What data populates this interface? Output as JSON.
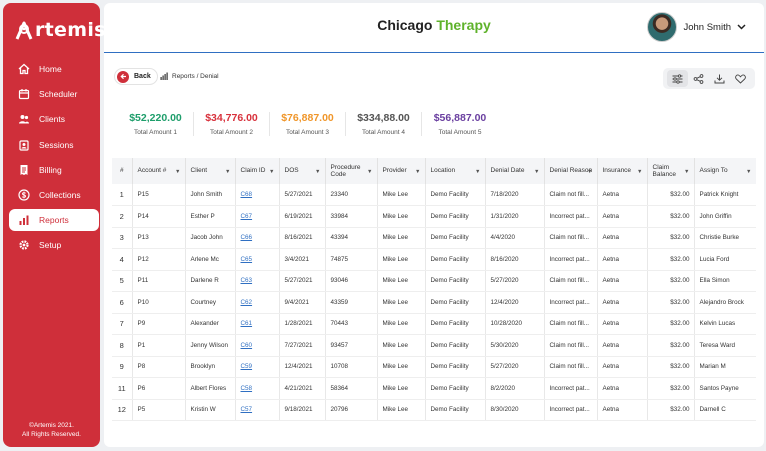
{
  "brand": {
    "logo_text": "rtemis",
    "copyright_line1": "©Artemis 2021.",
    "copyright_line2": "All Rights Reserved."
  },
  "nav": [
    {
      "label": "Home",
      "icon": "home-icon"
    },
    {
      "label": "Scheduler",
      "icon": "calendar-icon"
    },
    {
      "label": "Clients",
      "icon": "users-icon"
    },
    {
      "label": "Sessions",
      "icon": "sessions-icon"
    },
    {
      "label": "Billing",
      "icon": "billing-icon"
    },
    {
      "label": "Collections",
      "icon": "dollar-icon"
    },
    {
      "label": "Reports",
      "icon": "chart-icon",
      "active": true
    },
    {
      "label": "Setup",
      "icon": "gear-icon"
    }
  ],
  "header": {
    "title_part1": "Chicago ",
    "title_part2": "Therapy",
    "user_name": "John Smith"
  },
  "toolbar": {
    "back_label": "Back",
    "breadcrumb": "Reports / Denial"
  },
  "summary": [
    {
      "value": "$52,220.00",
      "label": "Total Amount 1",
      "color": "#1e9e6b"
    },
    {
      "value": "$34,776.00",
      "label": "Total Amount 2",
      "color": "#d8313c"
    },
    {
      "value": "$76,887.00",
      "label": "Total Amount 3",
      "color": "#f0962a"
    },
    {
      "value": "$334,88.00",
      "label": "Total Amount 4",
      "color": "#555555"
    },
    {
      "value": "$56,887.00",
      "label": "Total Amount 5",
      "color": "#6a3fa0"
    }
  ],
  "table": {
    "headers": [
      "#",
      "Account #",
      "Client",
      "Claim ID",
      "DOS",
      "Procedure Code",
      "Provider",
      "Location",
      "Denial Date",
      "Denial Reason",
      "Insurance",
      "Claim Balance",
      "Assign To"
    ],
    "rows": [
      [
        "1",
        "P15",
        "John Smith",
        "C68",
        "5/27/2021",
        "23340",
        "Mike Lee",
        "Demo Facility",
        "7/18/2020",
        "Claim not fill...",
        "Aetna",
        "$32.00",
        "Patrick Knight"
      ],
      [
        "2",
        "P14",
        "Esther P",
        "C67",
        "6/19/2021",
        "33984",
        "Mike Lee",
        "Demo Facility",
        "1/31/2020",
        "Incorrect pat...",
        "Aetna",
        "$32.00",
        "John Griffin"
      ],
      [
        "3",
        "P13",
        "Jacob John",
        "C66",
        "8/16/2021",
        "43394",
        "Mike Lee",
        "Demo Facility",
        "4/4/2020",
        "Claim not fill...",
        "Aetna",
        "$32.00",
        "Christie Burke"
      ],
      [
        "4",
        "P12",
        "Arlene Mc",
        "C65",
        "3/4/2021",
        "74875",
        "Mike Lee",
        "Demo Facility",
        "8/16/2020",
        "Incorrect pat...",
        "Aetna",
        "$32.00",
        "Lucia Ford"
      ],
      [
        "5",
        "P11",
        "Darlene R",
        "C63",
        "5/27/2021",
        "93046",
        "Mike Lee",
        "Demo Facility",
        "5/27/2020",
        "Claim not fill...",
        "Aetna",
        "$32.00",
        "Ella Simon"
      ],
      [
        "6",
        "P10",
        "Courtney",
        "C62",
        "9/4/2021",
        "43359",
        "Mike Lee",
        "Demo Facility",
        "12/4/2020",
        "Incorrect pat...",
        "Aetna",
        "$32.00",
        "Alejandro Brock"
      ],
      [
        "7",
        "P9",
        "Alexander",
        "C61",
        "1/28/2021",
        "70443",
        "Mike Lee",
        "Demo Facility",
        "10/28/2020",
        "Claim not fill...",
        "Aetna",
        "$32.00",
        "Kelvin Lucas"
      ],
      [
        "8",
        "P1",
        "Jenny Wilson",
        "C60",
        "7/27/2021",
        "93457",
        "Mike Lee",
        "Demo Facility",
        "5/30/2020",
        "Claim not fill...",
        "Aetna",
        "$32.00",
        "Teresa Ward"
      ],
      [
        "9",
        "P8",
        "Brooklyn",
        "C59",
        "12/4/2021",
        "10708",
        "Mike Lee",
        "Demo Facility",
        "5/27/2020",
        "Claim not fill...",
        "Aetna",
        "$32.00",
        "Marian M"
      ],
      [
        "11",
        "P6",
        "Albert Flores",
        "C58",
        "4/21/2021",
        "58364",
        "Mike Lee",
        "Demo Facility",
        "8/2/2020",
        "Incorrect pat...",
        "Aetna",
        "$32.00",
        "Santos Payne"
      ],
      [
        "12",
        "P5",
        "Kristin W",
        "C57",
        "9/18/2021",
        "20796",
        "Mike Lee",
        "Demo Facility",
        "8/30/2020",
        "Incorrect pat...",
        "Aetna",
        "$32.00",
        "Darnell C"
      ]
    ]
  }
}
